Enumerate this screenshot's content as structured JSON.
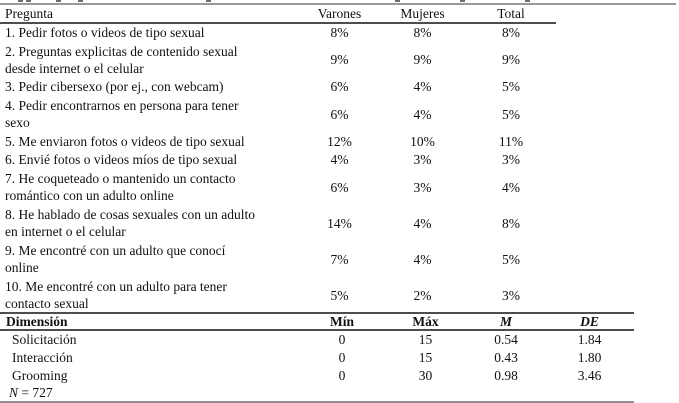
{
  "questions_table": {
    "columns": [
      "Pregunta",
      "Varones",
      "Mujeres",
      "Total"
    ],
    "rows": [
      {
        "lines": [
          "1. Pedir fotos o videos de tipo sexual"
        ],
        "varones": "8%",
        "mujeres": "8%",
        "total": "8%"
      },
      {
        "lines": [
          "2. Preguntas explicitas de contenido sexual",
          "desde internet o el celular"
        ],
        "varones": "9%",
        "mujeres": "9%",
        "total": "9%"
      },
      {
        "lines": [
          "3. Pedir cibersexo (por ej., con webcam)"
        ],
        "varones": "6%",
        "mujeres": "4%",
        "total": "5%"
      },
      {
        "lines": [
          "4. Pedir encontrarnos en persona para tener",
          "sexo"
        ],
        "varones": "6%",
        "mujeres": "4%",
        "total": "5%"
      },
      {
        "lines": [
          "5. Me enviaron fotos o videos de tipo sexual"
        ],
        "varones": "12%",
        "mujeres": "10%",
        "total": "11%"
      },
      {
        "lines": [
          "6. Envié fotos o videos míos de tipo sexual"
        ],
        "varones": "4%",
        "mujeres": "3%",
        "total": "3%"
      },
      {
        "lines": [
          "7. He coqueteado o mantenido un contacto",
          "romántico con un adulto online"
        ],
        "varones": "6%",
        "mujeres": "3%",
        "total": "4%"
      },
      {
        "lines": [
          "8. He hablado de cosas sexuales con un adulto",
          "en internet o el celular"
        ],
        "varones": "14%",
        "mujeres": "4%",
        "total": "8%"
      },
      {
        "lines": [
          "9. Me encontré con un adulto que conocí",
          "online"
        ],
        "varones": "7%",
        "mujeres": "4%",
        "total": "5%"
      },
      {
        "lines": [
          "10. Me encontré con un adulto para tener",
          "contacto sexual"
        ],
        "varones": "5%",
        "mujeres": "2%",
        "total": "3%"
      }
    ]
  },
  "dimensions_table": {
    "columns": [
      "Dimensión",
      "Mín",
      "Máx",
      "M",
      "DE"
    ],
    "rows": [
      {
        "label": "Solicitación",
        "min": "0",
        "max": "15",
        "m": "0.54",
        "de": "1.84"
      },
      {
        "label": "Interacción",
        "min": "0",
        "max": "15",
        "m": "0.43",
        "de": "1.80"
      },
      {
        "label": "Grooming",
        "min": "0",
        "max": "30",
        "m": "0.98",
        "de": "3.46"
      }
    ],
    "note": {
      "symbol": "N",
      "text": " = 727"
    }
  },
  "colors": {
    "background": "#ffffff",
    "text": "#111111",
    "rule_top": "#9a9a9a",
    "rule_inner": "#4d4d4d",
    "rule_bottom": "#8f8f8f"
  }
}
